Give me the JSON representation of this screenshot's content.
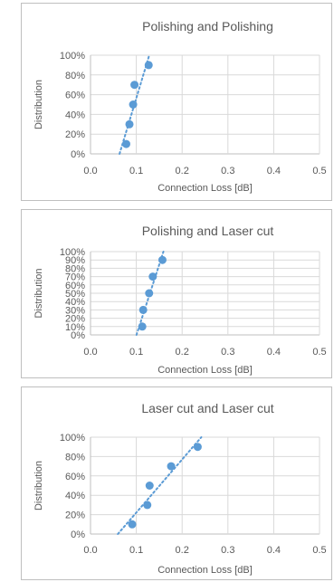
{
  "colors": {
    "marker": "#5b9bd5",
    "trend": "#5b9bd5",
    "grid": "#d9d9d9",
    "axis": "#bfbfbf",
    "text": "#595959"
  },
  "chart_data": [
    {
      "type": "scatter",
      "title": "Polishing and Polishing",
      "xlabel": "Connection Loss [dB]",
      "ylabel": "Distribution",
      "xlim": [
        0,
        0.5
      ],
      "ylim": [
        0,
        1
      ],
      "xticks": [
        "0.0",
        "0.1",
        "0.2",
        "0.3",
        "0.4",
        "0.5"
      ],
      "yticks": [
        "0%",
        "20%",
        "40%",
        "60%",
        "80%",
        "100%"
      ],
      "grid": true,
      "trendline": "linear",
      "points": [
        {
          "x": 0.078,
          "y": 0.1
        },
        {
          "x": 0.085,
          "y": 0.3
        },
        {
          "x": 0.093,
          "y": 0.5
        },
        {
          "x": 0.096,
          "y": 0.7
        },
        {
          "x": 0.127,
          "y": 0.9
        }
      ]
    },
    {
      "type": "scatter",
      "title": "Polishing and Laser cut",
      "xlabel": "Connection Loss [dB]",
      "ylabel": "Distribution",
      "xlim": [
        0,
        0.5
      ],
      "ylim": [
        0,
        1
      ],
      "xticks": [
        "0.0",
        "0.1",
        "0.2",
        "0.3",
        "0.4",
        "0.5"
      ],
      "yticks": [
        "0%",
        "10%",
        "20%",
        "30%",
        "40%",
        "50%",
        "60%",
        "70%",
        "80%",
        "90%",
        "100%"
      ],
      "grid": true,
      "trendline": "linear",
      "points": [
        {
          "x": 0.113,
          "y": 0.1
        },
        {
          "x": 0.115,
          "y": 0.3
        },
        {
          "x": 0.128,
          "y": 0.5
        },
        {
          "x": 0.136,
          "y": 0.7
        },
        {
          "x": 0.157,
          "y": 0.9
        }
      ]
    },
    {
      "type": "scatter",
      "title": "Laser cut and Laser cut",
      "xlabel": "Connection Loss [dB]",
      "ylabel": "Distribution",
      "xlim": [
        0,
        0.5
      ],
      "ylim": [
        0,
        1
      ],
      "xticks": [
        "0.0",
        "0.1",
        "0.2",
        "0.3",
        "0.4",
        "0.5"
      ],
      "yticks": [
        "0%",
        "20%",
        "40%",
        "60%",
        "80%",
        "100%"
      ],
      "grid": true,
      "trendline": "linear",
      "points": [
        {
          "x": 0.091,
          "y": 0.1
        },
        {
          "x": 0.124,
          "y": 0.3
        },
        {
          "x": 0.129,
          "y": 0.5
        },
        {
          "x": 0.176,
          "y": 0.7
        },
        {
          "x": 0.234,
          "y": 0.9
        }
      ]
    }
  ]
}
